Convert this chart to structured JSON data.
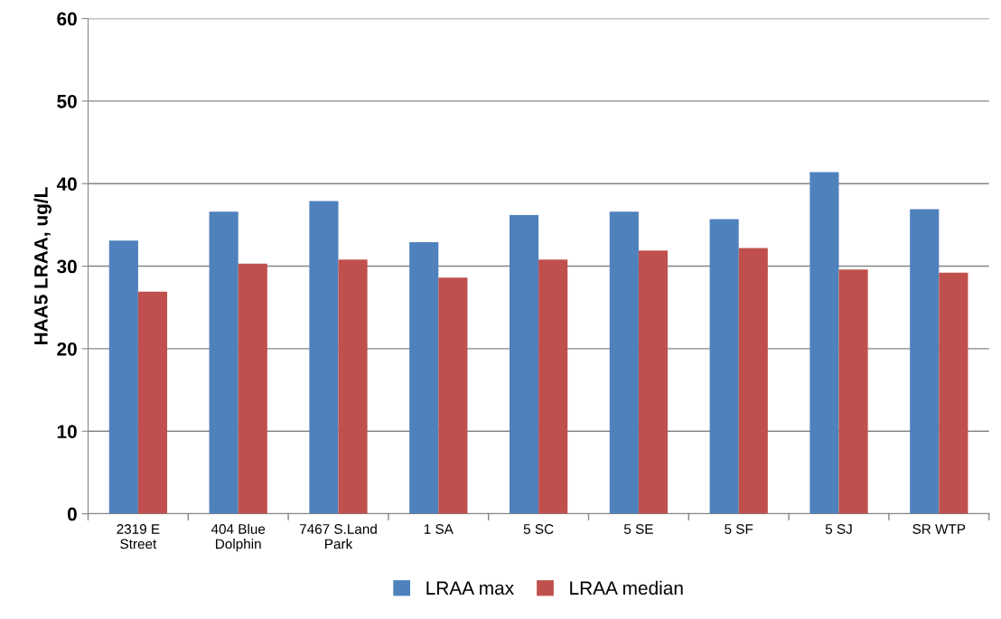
{
  "chart_data": {
    "type": "bar",
    "ylabel": "HAA5 LRAA, ug/L",
    "categories": [
      "2319 E\nStreet",
      "404 Blue\nDolphin",
      "7467 S.Land\nPark",
      "1 SA",
      "5 SC",
      "5 SE",
      "5 SF",
      "5 SJ",
      "SR WTP"
    ],
    "series": [
      {
        "name": "LRAA max",
        "color": "#4f81bd",
        "values": [
          33.1,
          36.6,
          37.9,
          32.9,
          36.2,
          36.6,
          35.7,
          41.4,
          36.9
        ]
      },
      {
        "name": "LRAA median",
        "color": "#c0504d",
        "values": [
          26.9,
          30.3,
          30.8,
          28.6,
          30.8,
          31.9,
          32.2,
          29.6,
          29.2
        ]
      }
    ],
    "ylim": [
      0,
      60
    ],
    "yticks": [
      0,
      10,
      20,
      30,
      40,
      50,
      60
    ],
    "grid": "y",
    "legend": "bottom"
  }
}
